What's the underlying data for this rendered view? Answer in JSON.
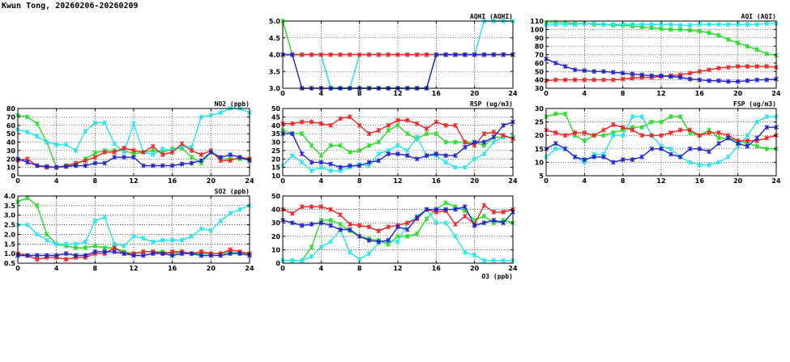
{
  "page": {
    "title": "Kwun Tong, 20260206-20260209"
  },
  "colors": {
    "green": "#22dd22",
    "cyan": "#22e5ee",
    "red": "#ee2222",
    "blue": "#1e22cc",
    "grid": "#000000"
  },
  "chart_data": [
    {
      "id": "aqhi",
      "type": "line",
      "title": "AQHI (AQHI)",
      "x": [
        0,
        1,
        2,
        3,
        4,
        5,
        6,
        7,
        8,
        9,
        10,
        11,
        12,
        13,
        14,
        15,
        16,
        17,
        18,
        19,
        20,
        21,
        22,
        23,
        24
      ],
      "xlim": [
        0,
        24
      ],
      "ylim": [
        3.0,
        5.0
      ],
      "xticks": [
        "0",
        "4",
        "8",
        "12",
        "16",
        "20",
        "24"
      ],
      "yticks": [
        "3.0",
        "3.5",
        "4.0",
        "4.5",
        "5.0"
      ],
      "grid": true,
      "series": [
        {
          "color": "green",
          "values": [
            5,
            4,
            4,
            4,
            4,
            3,
            3,
            3,
            3,
            3,
            3,
            3,
            3,
            3,
            3,
            3,
            4,
            4,
            4,
            4,
            4,
            4,
            4,
            4,
            4
          ]
        },
        {
          "color": "cyan",
          "values": [
            4,
            4,
            4,
            4,
            4,
            3,
            3,
            3,
            4,
            4,
            4,
            4,
            4,
            4,
            4,
            4,
            4,
            4,
            4,
            4,
            4,
            5,
            5,
            5,
            5
          ]
        },
        {
          "color": "red",
          "values": [
            4,
            4,
            4,
            4,
            4,
            4,
            4,
            4,
            4,
            4,
            4,
            4,
            4,
            4,
            4,
            4,
            4,
            4,
            4,
            4,
            4,
            4,
            4,
            4,
            4
          ]
        },
        {
          "color": "blue",
          "values": [
            4,
            4,
            3,
            3,
            3,
            3,
            3,
            3,
            3,
            3,
            3,
            3,
            3,
            3,
            3,
            3,
            4,
            4,
            4,
            4,
            4,
            4,
            4,
            4,
            4
          ]
        }
      ]
    },
    {
      "id": "aqi",
      "type": "line",
      "title": "AQI (AQI)",
      "x": [
        0,
        1,
        2,
        3,
        4,
        5,
        6,
        7,
        8,
        9,
        10,
        11,
        12,
        13,
        14,
        15,
        16,
        17,
        18,
        19,
        20,
        21,
        22,
        23,
        24
      ],
      "xlim": [
        0,
        24
      ],
      "ylim": [
        30,
        110
      ],
      "xticks": [
        "0",
        "4",
        "8",
        "12",
        "16",
        "20",
        "24"
      ],
      "yticks": [
        "30",
        "40",
        "50",
        "60",
        "70",
        "80",
        "90",
        "100",
        "110"
      ],
      "grid": true,
      "series": [
        {
          "color": "green",
          "values": [
            108,
            108,
            108,
            107,
            107,
            106,
            106,
            105,
            105,
            104,
            103,
            102,
            101,
            100,
            100,
            99,
            98,
            96,
            93,
            88,
            84,
            80,
            76,
            71,
            69
          ]
        },
        {
          "color": "cyan",
          "values": [
            105,
            106,
            106,
            106,
            107,
            107,
            106,
            106,
            106,
            106,
            106,
            106,
            106,
            106,
            105,
            105,
            106,
            106,
            106,
            106,
            106,
            106,
            106,
            107,
            107
          ]
        },
        {
          "color": "red",
          "values": [
            39,
            40,
            40,
            40,
            40,
            40,
            40,
            40,
            41,
            42,
            43,
            43,
            44,
            45,
            46,
            48,
            50,
            52,
            54,
            55,
            56,
            56,
            56,
            56,
            55
          ]
        },
        {
          "color": "blue",
          "values": [
            65,
            60,
            56,
            52,
            51,
            50,
            50,
            49,
            48,
            47,
            46,
            45,
            45,
            44,
            43,
            41,
            40,
            39,
            39,
            38,
            38,
            39,
            40,
            40,
            41
          ]
        }
      ]
    },
    {
      "id": "no2",
      "type": "line",
      "title": "NO2 (ppb)",
      "x": [
        0,
        1,
        2,
        3,
        4,
        5,
        6,
        7,
        8,
        9,
        10,
        11,
        12,
        13,
        14,
        15,
        16,
        17,
        18,
        19,
        20,
        21,
        22,
        23,
        24
      ],
      "xlim": [
        0,
        24
      ],
      "ylim": [
        0,
        80
      ],
      "xticks": [
        "0",
        "4",
        "8",
        "12",
        "16",
        "20",
        "24"
      ],
      "yticks": [
        "0",
        "10",
        "20",
        "30",
        "40",
        "50",
        "60",
        "70",
        "80"
      ],
      "grid": true,
      "series": [
        {
          "color": "green",
          "values": [
            72,
            70,
            62,
            40,
            10,
            11,
            13,
            20,
            27,
            30,
            30,
            30,
            26,
            28,
            30,
            28,
            32,
            33,
            22,
            15,
            28,
            20,
            20,
            20,
            20
          ]
        },
        {
          "color": "cyan",
          "values": [
            55,
            52,
            47,
            40,
            37,
            37,
            30,
            53,
            63,
            63,
            38,
            28,
            62,
            28,
            25,
            32,
            30,
            35,
            34,
            70,
            72,
            75,
            80,
            80,
            75
          ]
        },
        {
          "color": "red",
          "values": [
            18,
            20,
            12,
            10,
            10,
            12,
            15,
            18,
            22,
            28,
            28,
            33,
            30,
            28,
            35,
            25,
            28,
            38,
            30,
            25,
            30,
            18,
            18,
            22,
            20
          ]
        },
        {
          "color": "blue",
          "values": [
            20,
            16,
            12,
            11,
            10,
            11,
            12,
            12,
            15,
            15,
            22,
            22,
            22,
            12,
            12,
            12,
            12,
            14,
            15,
            18,
            28,
            22,
            25,
            22,
            18
          ]
        }
      ]
    },
    {
      "id": "rsp",
      "type": "line",
      "title": "RSP (ug/m3)",
      "x": [
        0,
        1,
        2,
        3,
        4,
        5,
        6,
        7,
        8,
        9,
        10,
        11,
        12,
        13,
        14,
        15,
        16,
        17,
        18,
        19,
        20,
        21,
        22,
        23,
        24
      ],
      "xlim": [
        0,
        24
      ],
      "ylim": [
        10,
        50
      ],
      "xticks": [
        "0",
        "4",
        "8",
        "12",
        "16",
        "20",
        "24"
      ],
      "yticks": [
        "10",
        "15",
        "20",
        "25",
        "30",
        "35",
        "40",
        "45",
        "50"
      ],
      "grid": true,
      "series": [
        {
          "color": "green",
          "values": [
            37,
            35,
            35,
            28,
            22,
            28,
            28,
            24,
            25,
            28,
            30,
            37,
            40,
            35,
            32,
            35,
            35,
            30,
            30,
            30,
            30,
            28,
            33,
            33,
            33
          ]
        },
        {
          "color": "cyan",
          "values": [
            16,
            22,
            18,
            13,
            15,
            13,
            13,
            15,
            17,
            16,
            23,
            25,
            28,
            25,
            33,
            22,
            22,
            18,
            15,
            15,
            20,
            23,
            30,
            33,
            33
          ]
        },
        {
          "color": "red",
          "values": [
            41,
            41,
            42,
            42,
            41,
            40,
            44,
            45,
            40,
            35,
            37,
            40,
            43,
            43,
            41,
            38,
            42,
            40,
            40,
            30,
            28,
            35,
            36,
            34,
            32
          ]
        },
        {
          "color": "blue",
          "values": [
            35,
            35,
            23,
            18,
            18,
            17,
            15,
            16,
            16,
            18,
            19,
            23,
            23,
            22,
            20,
            22,
            23,
            22,
            22,
            27,
            30,
            30,
            33,
            40,
            42
          ]
        }
      ]
    },
    {
      "id": "fsp",
      "type": "line",
      "title": "FSP (ug/m3)",
      "x": [
        0,
        1,
        2,
        3,
        4,
        5,
        6,
        7,
        8,
        9,
        10,
        11,
        12,
        13,
        14,
        15,
        16,
        17,
        18,
        19,
        20,
        21,
        22,
        23,
        24
      ],
      "xlim": [
        0,
        24
      ],
      "ylim": [
        5,
        30
      ],
      "xticks": [
        "0",
        "4",
        "8",
        "12",
        "16",
        "20",
        "24"
      ],
      "yticks": [
        "5",
        "10",
        "15",
        "20",
        "25",
        "30"
      ],
      "grid": true,
      "series": [
        {
          "color": "green",
          "values": [
            27,
            28,
            28,
            20,
            18,
            20,
            20,
            21,
            22,
            23,
            23,
            25,
            25,
            27,
            27,
            21,
            20,
            22,
            19,
            19,
            18,
            17,
            16,
            15,
            15
          ]
        },
        {
          "color": "cyan",
          "values": [
            12,
            15,
            15,
            12,
            10,
            13,
            13,
            20,
            20,
            27,
            27,
            20,
            16,
            15,
            12,
            10,
            9,
            9,
            10,
            12,
            16,
            20,
            25,
            27,
            27
          ]
        },
        {
          "color": "red",
          "values": [
            22,
            21,
            20,
            21,
            21,
            20,
            22,
            24,
            23,
            22,
            20,
            20,
            20,
            21,
            22,
            22,
            20,
            21,
            21,
            20,
            18,
            18,
            18,
            19,
            20
          ]
        },
        {
          "color": "blue",
          "values": [
            15,
            17,
            15,
            12,
            11,
            12,
            12,
            10,
            11,
            11,
            12,
            15,
            15,
            13,
            12,
            15,
            15,
            14,
            17,
            19,
            17,
            16,
            19,
            23,
            23
          ]
        }
      ]
    },
    {
      "id": "so2",
      "type": "line",
      "title": "SO2 (ppb)",
      "x": [
        0,
        1,
        2,
        3,
        4,
        5,
        6,
        7,
        8,
        9,
        10,
        11,
        12,
        13,
        14,
        15,
        16,
        17,
        18,
        19,
        20,
        21,
        22,
        23,
        24
      ],
      "xlim": [
        0,
        24
      ],
      "ylim": [
        0.5,
        4.0
      ],
      "xticks": [
        "0",
        "4",
        "8",
        "12",
        "16",
        "20",
        "24"
      ],
      "yticks": [
        "0.5",
        "1.0",
        "1.5",
        "2.0",
        "2.5",
        "3.0",
        "3.5",
        "4.0"
      ],
      "grid": true,
      "series": [
        {
          "color": "green",
          "values": [
            3.7,
            3.9,
            3.5,
            2.0,
            1.5,
            1.4,
            1.3,
            1.3,
            1.4,
            1.3,
            1.3,
            1.1,
            1.0,
            1.1,
            1.1,
            1.1,
            1.0,
            1.1,
            1.0,
            1.0,
            1.0,
            1.0,
            1.1,
            1.0,
            1.0
          ]
        },
        {
          "color": "cyan",
          "values": [
            2.5,
            2.5,
            2.0,
            1.7,
            1.5,
            1.5,
            1.5,
            1.6,
            2.7,
            2.9,
            1.5,
            1.4,
            1.9,
            1.8,
            1.6,
            1.7,
            1.7,
            1.7,
            1.9,
            2.3,
            2.2,
            2.7,
            3.1,
            3.3,
            3.5
          ]
        },
        {
          "color": "red",
          "values": [
            1.0,
            0.9,
            0.7,
            0.8,
            0.8,
            0.7,
            0.8,
            0.8,
            1.0,
            1.0,
            1.3,
            1.0,
            1.0,
            1.1,
            1.1,
            1.0,
            1.1,
            1.1,
            1.0,
            1.1,
            1.0,
            1.0,
            1.2,
            1.1,
            1.0
          ]
        },
        {
          "color": "blue",
          "values": [
            0.9,
            0.9,
            0.9,
            0.9,
            0.9,
            1.0,
            0.9,
            0.9,
            1.1,
            1.1,
            1.1,
            1.0,
            0.9,
            0.9,
            1.0,
            1.0,
            0.9,
            1.0,
            1.0,
            0.9,
            0.9,
            0.9,
            1.0,
            1.0,
            0.9
          ]
        }
      ]
    },
    {
      "id": "o3",
      "type": "line",
      "title": "O3 (ppb)",
      "x": [
        0,
        1,
        2,
        3,
        4,
        5,
        6,
        7,
        8,
        9,
        10,
        11,
        12,
        13,
        14,
        15,
        16,
        17,
        18,
        19,
        20,
        21,
        22,
        23,
        24
      ],
      "xlim": [
        0,
        24
      ],
      "ylim": [
        0,
        50
      ],
      "xticks": [
        "0",
        "4",
        "8",
        "12",
        "16",
        "20",
        "24"
      ],
      "yticks": [
        "0",
        "10",
        "20",
        "30",
        "40",
        "50"
      ],
      "grid": true,
      "series": [
        {
          "color": "green",
          "values": [
            2,
            2,
            2,
            12,
            32,
            32,
            29,
            24,
            20,
            18,
            17,
            14,
            20,
            20,
            22,
            33,
            40,
            45,
            42,
            39,
            32,
            35,
            30,
            32,
            30
          ]
        },
        {
          "color": "cyan",
          "values": [
            2,
            2,
            2,
            5,
            12,
            16,
            25,
            8,
            3,
            7,
            15,
            17,
            16,
            30,
            35,
            40,
            30,
            30,
            20,
            8,
            6,
            2,
            2,
            2,
            2
          ]
        },
        {
          "color": "red",
          "values": [
            40,
            37,
            42,
            42,
            42,
            40,
            36,
            29,
            28,
            27,
            24,
            27,
            28,
            30,
            33,
            40,
            38,
            39,
            29,
            35,
            29,
            43,
            38,
            38,
            40
          ]
        },
        {
          "color": "blue",
          "values": [
            32,
            30,
            28,
            29,
            30,
            28,
            25,
            25,
            20,
            17,
            16,
            17,
            27,
            25,
            34,
            40,
            40,
            40,
            40,
            42,
            28,
            30,
            32,
            30,
            38
          ]
        }
      ]
    }
  ]
}
